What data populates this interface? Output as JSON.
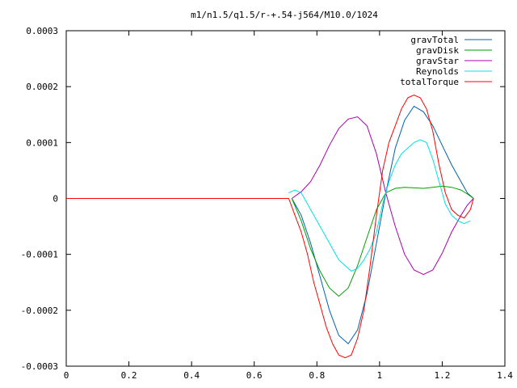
{
  "chart_data": {
    "type": "line",
    "title": "m1/n1.5/q1.5/r-+.54-j564/M10.0/1024",
    "xlabel": "",
    "ylabel": "",
    "xlim": [
      0,
      1.4
    ],
    "ylim": [
      -0.0003,
      0.0003
    ],
    "x_ticks": [
      "0",
      "0.2",
      "0.4",
      "0.6",
      "0.8",
      "1",
      "1.2",
      "1.4"
    ],
    "y_ticks": [
      "0.0003",
      "0.0002",
      "0.0001",
      "0",
      "-0.0001",
      "-0.0002",
      "-0.0003"
    ],
    "grid": false,
    "legend_position": "top-right",
    "series": [
      {
        "name": "gravTotal",
        "color": "#0060ad",
        "x": [
          0.72,
          0.75,
          0.78,
          0.81,
          0.84,
          0.87,
          0.9,
          0.93,
          0.96,
          0.99,
          1.02,
          1.05,
          1.08,
          1.11,
          1.14,
          1.17,
          1.2,
          1.23,
          1.26,
          1.28,
          1.3
        ],
        "y": [
          0,
          -3e-05,
          -8e-05,
          -0.00014,
          -0.0002,
          -0.000245,
          -0.00026,
          -0.000235,
          -0.00017,
          -8e-05,
          1e-05,
          9e-05,
          0.00014,
          0.000165,
          0.000155,
          0.00013,
          9.5e-05,
          6e-05,
          3e-05,
          1e-05,
          0
        ]
      },
      {
        "name": "gravDisk",
        "color": "#009e00",
        "x": [
          0.72,
          0.75,
          0.78,
          0.81,
          0.84,
          0.87,
          0.9,
          0.93,
          0.96,
          0.99,
          1.02,
          1.05,
          1.08,
          1.11,
          1.14,
          1.17,
          1.2,
          1.23,
          1.26,
          1.28,
          1.3
        ],
        "y": [
          0,
          -4e-05,
          -9e-05,
          -0.00013,
          -0.00016,
          -0.000175,
          -0.00016,
          -0.00012,
          -7e-05,
          -2e-05,
          1e-05,
          1.8e-05,
          2e-05,
          1.9e-05,
          1.8e-05,
          2e-05,
          2.2e-05,
          2e-05,
          1.5e-05,
          8e-06,
          0
        ]
      },
      {
        "name": "gravStar",
        "color": "#aa00aa",
        "x": [
          0.72,
          0.75,
          0.78,
          0.81,
          0.84,
          0.87,
          0.9,
          0.93,
          0.96,
          0.99,
          1.02,
          1.05,
          1.08,
          1.11,
          1.14,
          1.17,
          1.2,
          1.23,
          1.26,
          1.28,
          1.3
        ],
        "y": [
          0,
          1.2e-05,
          3e-05,
          6e-05,
          9.5e-05,
          0.000125,
          0.000142,
          0.000146,
          0.00013,
          8e-05,
          1e-05,
          -5e-05,
          -0.0001,
          -0.000128,
          -0.000136,
          -0.000128,
          -9.8e-05,
          -6e-05,
          -3e-05,
          -1.2e-05,
          0
        ]
      },
      {
        "name": "Reynolds",
        "color": "#00e0e0",
        "x": [
          0.71,
          0.73,
          0.75,
          0.77,
          0.79,
          0.81,
          0.83,
          0.85,
          0.87,
          0.89,
          0.91,
          0.93,
          0.95,
          0.97,
          0.99,
          1.01,
          1.03,
          1.05,
          1.07,
          1.09,
          1.11,
          1.13,
          1.15,
          1.17,
          1.19,
          1.21,
          1.23,
          1.25,
          1.27,
          1.29
        ],
        "y": [
          1e-05,
          1.5e-05,
          1e-05,
          -1e-05,
          -3e-05,
          -5e-05,
          -7e-05,
          -9e-05,
          -0.00011,
          -0.00012,
          -0.00013,
          -0.000125,
          -0.00011,
          -9e-05,
          -6e-05,
          -1e-05,
          3e-05,
          6e-05,
          8e-05,
          9e-05,
          0.0001,
          0.000105,
          0.0001,
          7e-05,
          3e-05,
          -1e-05,
          -3e-05,
          -4e-05,
          -4.5e-05,
          -4e-05
        ]
      },
      {
        "name": "totalTorque",
        "color": "#ff0000",
        "x": [
          0,
          0.71,
          0.73,
          0.75,
          0.77,
          0.79,
          0.81,
          0.83,
          0.85,
          0.87,
          0.89,
          0.91,
          0.93,
          0.95,
          0.97,
          0.99,
          1.01,
          1.03,
          1.05,
          1.07,
          1.09,
          1.11,
          1.13,
          1.15,
          1.17,
          1.19,
          1.21,
          1.23,
          1.25,
          1.27,
          1.29,
          1.3
        ],
        "y": [
          0,
          0,
          -3e-05,
          -6e-05,
          -0.0001,
          -0.00015,
          -0.00019,
          -0.00023,
          -0.00026,
          -0.00028,
          -0.000285,
          -0.00028,
          -0.00025,
          -0.0002,
          -0.00012,
          -3e-05,
          5e-05,
          0.0001,
          0.00013,
          0.00016,
          0.00018,
          0.000185,
          0.00018,
          0.00016,
          0.00012,
          6e-05,
          1e-05,
          -2e-05,
          -3e-05,
          -3.5e-05,
          -2e-05,
          0
        ]
      }
    ]
  }
}
